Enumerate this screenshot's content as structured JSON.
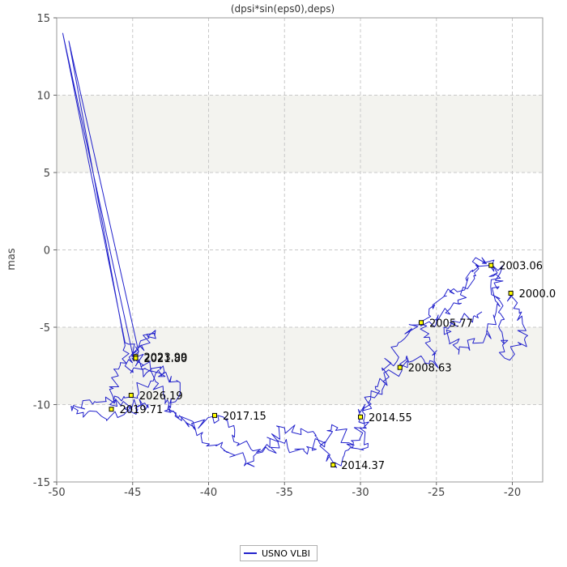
{
  "chart_data": {
    "type": "line",
    "title": "(dpsi*sin(eps0),deps)",
    "xlabel": "",
    "ylabel": "mas",
    "xlim": [
      -50,
      -18
    ],
    "ylim": [
      -15,
      15
    ],
    "xticks": [
      -50,
      -45,
      -40,
      -35,
      -30,
      -25,
      -20
    ],
    "yticks": [
      -15,
      -10,
      -5,
      0,
      5,
      10,
      15
    ],
    "grid": true,
    "shaded_bands": [
      [
        5,
        10
      ],
      [
        -10,
        -5
      ]
    ],
    "colors": {
      "series": "#2222cc",
      "band": "#f3f3ef",
      "grid": "#c8c8c8",
      "marker_fill": "#ffff00"
    },
    "legend": {
      "position": "bottom",
      "entries": [
        "USNO VLBI"
      ]
    },
    "series": [
      {
        "name": "USNO VLBI",
        "anchors": [
          {
            "x": -20.0,
            "y": -2.8
          },
          {
            "x": -19.2,
            "y": -5.8
          },
          {
            "x": -20.5,
            "y": -7.0
          },
          {
            "x": -21.3,
            "y": -1.0
          },
          {
            "x": -22.5,
            "y": -1.5
          },
          {
            "x": -23.5,
            "y": -3.5
          },
          {
            "x": -25.0,
            "y": -4.5
          },
          {
            "x": -26.0,
            "y": -4.8
          },
          {
            "x": -25.0,
            "y": -7.5
          },
          {
            "x": -27.0,
            "y": -7.0
          },
          {
            "x": -27.3,
            "y": -7.6
          },
          {
            "x": -29.0,
            "y": -9.0
          },
          {
            "x": -30.0,
            "y": -10.8
          },
          {
            "x": -29.5,
            "y": -12.5
          },
          {
            "x": -31.0,
            "y": -13.0
          },
          {
            "x": -31.8,
            "y": -13.9
          },
          {
            "x": -33.0,
            "y": -12.0
          },
          {
            "x": -35.0,
            "y": -11.5
          },
          {
            "x": -36.5,
            "y": -13.0
          },
          {
            "x": -38.0,
            "y": -12.5
          },
          {
            "x": -39.4,
            "y": -10.7
          },
          {
            "x": -41.0,
            "y": -11.5
          },
          {
            "x": -42.5,
            "y": -10.5
          },
          {
            "x": -43.5,
            "y": -8.5
          },
          {
            "x": -44.7,
            "y": -6.9
          },
          {
            "x": -45.5,
            "y": -6.0
          },
          {
            "x": -49.6,
            "y": 14.0
          },
          {
            "x": -44.9,
            "y": -7.2
          },
          {
            "x": -43.0,
            "y": -7.5
          },
          {
            "x": -45.1,
            "y": -9.5
          },
          {
            "x": -47.5,
            "y": -9.8
          },
          {
            "x": -49.0,
            "y": -10.4
          },
          {
            "x": -46.5,
            "y": -10.8
          },
          {
            "x": -44.0,
            "y": -10.0
          },
          {
            "x": -46.5,
            "y": -10.0
          },
          {
            "x": -45.5,
            "y": -6.2
          },
          {
            "x": -49.2,
            "y": 13.5
          },
          {
            "x": -44.6,
            "y": -6.6
          },
          {
            "x": -43.5,
            "y": -5.2
          },
          {
            "x": -45.5,
            "y": -7.5
          },
          {
            "x": -42.0,
            "y": -8.5
          },
          {
            "x": -42.5,
            "y": -10.2
          },
          {
            "x": -40.5,
            "y": -12.0
          },
          {
            "x": -37.5,
            "y": -13.8
          },
          {
            "x": -35.0,
            "y": -12.5
          },
          {
            "x": -33.5,
            "y": -13.2
          },
          {
            "x": -31.5,
            "y": -11.5
          },
          {
            "x": -30.5,
            "y": -12.8
          },
          {
            "x": -29.8,
            "y": -11.0
          },
          {
            "x": -28.5,
            "y": -8.5
          },
          {
            "x": -27.5,
            "y": -6.0
          },
          {
            "x": -25.5,
            "y": -4.2
          },
          {
            "x": -24.5,
            "y": -3.0
          },
          {
            "x": -23.0,
            "y": -2.0
          },
          {
            "x": -22.0,
            "y": -0.5
          },
          {
            "x": -20.8,
            "y": -1.5
          },
          {
            "x": -21.5,
            "y": -5.5
          },
          {
            "x": -23.5,
            "y": -6.5
          },
          {
            "x": -24.5,
            "y": -5.0
          },
          {
            "x": -22.0,
            "y": -4.0
          }
        ]
      }
    ],
    "epoch_labels": [
      {
        "text": "2003.06",
        "x": -21.4,
        "y": -1.0
      },
      {
        "text": "2000.0",
        "x": -20.1,
        "y": -2.8
      },
      {
        "text": "2005.77",
        "x": -26.0,
        "y": -4.7
      },
      {
        "text": "2008.63",
        "x": -27.4,
        "y": -7.6
      },
      {
        "text": "2014.55",
        "x": -30.0,
        "y": -10.8
      },
      {
        "text": "2014.37",
        "x": -31.8,
        "y": -13.9
      },
      {
        "text": "2017.15",
        "x": -39.6,
        "y": -10.7
      },
      {
        "text": "2023.99",
        "x": -44.8,
        "y": -6.9
      },
      {
        "text": "2021.80",
        "x": -44.8,
        "y": -7.0
      },
      {
        "text": "2026.19",
        "x": -45.1,
        "y": -9.4
      },
      {
        "text": "2019.71",
        "x": -46.4,
        "y": -10.3
      }
    ]
  }
}
